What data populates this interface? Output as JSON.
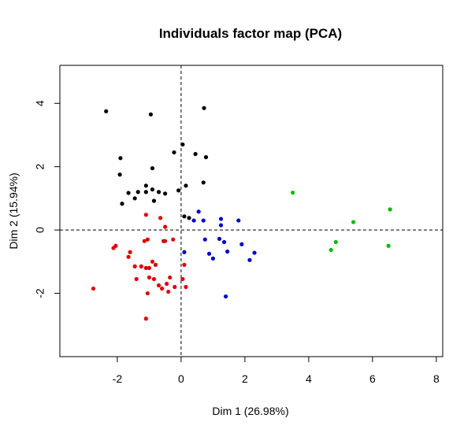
{
  "chart_data": {
    "type": "scatter",
    "title": "Individuals factor map (PCA)",
    "xlabel": "Dim 1 (26.98%)",
    "ylabel": "Dim 2 (15.94%)",
    "xlim": [
      -3.8,
      8.2
    ],
    "ylim": [
      -4.0,
      5.2
    ],
    "xticks": [
      -2,
      0,
      2,
      4,
      6,
      8
    ],
    "yticks": [
      -2,
      0,
      2,
      4
    ],
    "xtick_labels": [
      "-2",
      "0",
      "2",
      "4",
      "6",
      "8"
    ],
    "ytick_labels": [
      "-2",
      "0",
      "2",
      "4"
    ],
    "reference_lines": {
      "x": 0,
      "y": 0,
      "style": "dashed"
    },
    "grid": false,
    "series": [
      {
        "color": "#000000",
        "points": [
          [
            -2.35,
            3.75
          ],
          [
            -0.95,
            3.65
          ],
          [
            0.72,
            3.85
          ],
          [
            -1.9,
            2.27
          ],
          [
            -0.9,
            1.95
          ],
          [
            -1.92,
            1.75
          ],
          [
            -0.22,
            2.45
          ],
          [
            0.05,
            2.7
          ],
          [
            0.45,
            2.4
          ],
          [
            0.78,
            2.3
          ],
          [
            -1.1,
            1.4
          ],
          [
            -1.35,
            1.2
          ],
          [
            -1.65,
            1.17
          ],
          [
            -1.1,
            1.2
          ],
          [
            -0.9,
            1.28
          ],
          [
            -0.7,
            1.2
          ],
          [
            -0.5,
            1.15
          ],
          [
            -0.85,
            0.92
          ],
          [
            -1.45,
            1.0
          ],
          [
            -1.85,
            0.83
          ],
          [
            -0.08,
            1.25
          ],
          [
            0.15,
            1.4
          ],
          [
            0.7,
            1.5
          ],
          [
            0.1,
            0.43
          ],
          [
            0.25,
            0.38
          ]
        ]
      },
      {
        "color": "#dd0000",
        "points": [
          [
            -1.1,
            0.48
          ],
          [
            -0.65,
            0.38
          ],
          [
            -0.5,
            0.1
          ],
          [
            -2.05,
            -0.5
          ],
          [
            -2.12,
            -0.57
          ],
          [
            -1.6,
            -0.7
          ],
          [
            -1.65,
            -0.85
          ],
          [
            -1.45,
            -1.15
          ],
          [
            -1.25,
            -1.15
          ],
          [
            -1.1,
            -1.2
          ],
          [
            -1.0,
            -1.2
          ],
          [
            -0.9,
            -1.0
          ],
          [
            -0.8,
            -1.1
          ],
          [
            -0.85,
            -1.55
          ],
          [
            -1.0,
            -1.5
          ],
          [
            -1.4,
            -1.55
          ],
          [
            -1.05,
            -2.0
          ],
          [
            -0.7,
            -1.75
          ],
          [
            -0.6,
            -1.85
          ],
          [
            -0.45,
            -1.7
          ],
          [
            -0.4,
            -1.95
          ],
          [
            -0.2,
            -1.8
          ],
          [
            -2.75,
            -1.85
          ],
          [
            -1.1,
            -2.8
          ],
          [
            -0.55,
            -0.35
          ],
          [
            -0.25,
            -0.3
          ],
          [
            -1.05,
            -0.3
          ],
          [
            -1.15,
            -0.35
          ],
          [
            -0.5,
            -0.35
          ],
          [
            0.1,
            -1.1
          ],
          [
            0.05,
            -1.55
          ],
          [
            0.15,
            -1.8
          ],
          [
            -0.35,
            -1.5
          ]
        ]
      },
      {
        "color": "#0000cc",
        "points": [
          [
            0.55,
            0.58
          ],
          [
            0.4,
            0.3
          ],
          [
            0.7,
            0.3
          ],
          [
            1.25,
            0.35
          ],
          [
            1.25,
            0.15
          ],
          [
            1.8,
            0.3
          ],
          [
            1.2,
            -0.28
          ],
          [
            1.35,
            -0.38
          ],
          [
            1.0,
            -0.9
          ],
          [
            0.88,
            -0.75
          ],
          [
            1.45,
            -0.68
          ],
          [
            1.9,
            -0.45
          ],
          [
            2.15,
            -0.95
          ],
          [
            2.3,
            -0.72
          ],
          [
            0.75,
            -0.3
          ],
          [
            0.1,
            -0.7
          ],
          [
            1.4,
            -2.1
          ]
        ]
      },
      {
        "color": "#00bb00",
        "points": [
          [
            3.5,
            1.18
          ],
          [
            6.55,
            0.65
          ],
          [
            5.4,
            0.25
          ],
          [
            4.85,
            -0.38
          ],
          [
            4.7,
            -0.63
          ],
          [
            6.5,
            -0.5
          ]
        ]
      }
    ]
  }
}
